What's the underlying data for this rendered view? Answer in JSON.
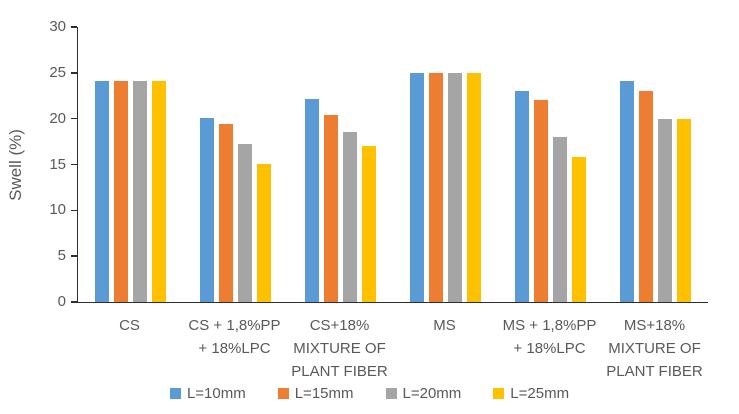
{
  "chart_data": {
    "type": "bar",
    "title": "",
    "xlabel": "",
    "ylabel": "Swell (%)",
    "ylim": [
      0,
      30
    ],
    "yticks": [
      0,
      5,
      10,
      15,
      20,
      25,
      30
    ],
    "grid": false,
    "legend_position": "bottom",
    "categories": [
      "CS",
      "CS + 1,8%PP + 18%LPC",
      "CS+18% MIXTURE OF PLANT FIBER",
      "MS",
      "MS + 1,8%PP + 18%LPC",
      "MS+18% MIXTURE OF PLANT FIBER"
    ],
    "category_label_lines": [
      [
        "CS"
      ],
      [
        "CS + 1,8%PP",
        "+ 18%LPC"
      ],
      [
        "CS+18%",
        "MIXTURE OF",
        "PLANT FIBER"
      ],
      [
        "MS"
      ],
      [
        "MS + 1,8%PP",
        "+ 18%LPC"
      ],
      [
        "MS+18%",
        "MIXTURE OF",
        "PLANT FIBER"
      ]
    ],
    "series": [
      {
        "name": "L=10mm",
        "color": "#5B9BD5",
        "values": [
          24.1,
          20.1,
          22.1,
          25.0,
          23.0,
          24.1
        ]
      },
      {
        "name": "L=15mm",
        "color": "#ED7D31",
        "values": [
          24.1,
          19.4,
          20.4,
          25.0,
          22.0,
          23.0
        ]
      },
      {
        "name": "L=20mm",
        "color": "#A5A5A5",
        "values": [
          24.1,
          17.2,
          18.5,
          25.0,
          18.0,
          20.0
        ]
      },
      {
        "name": "L=25mm",
        "color": "#FFC000",
        "values": [
          24.1,
          15.1,
          17.0,
          25.0,
          15.8,
          20.0
        ]
      }
    ],
    "axis_color": "#2e2e2e",
    "text_color": "#595959"
  }
}
